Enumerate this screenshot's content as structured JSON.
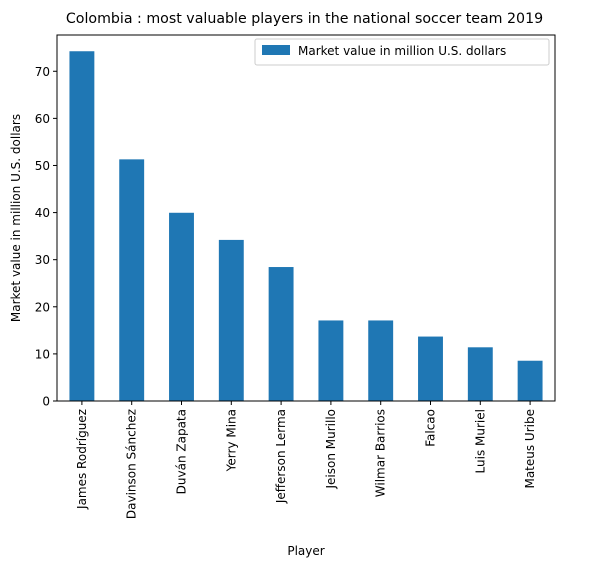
{
  "chart_data": {
    "type": "bar",
    "title": "Colombia : most valuable players in the national soccer team 2019",
    "xlabel": "Player",
    "ylabel": "Market value in million U.S. dollars",
    "ylim": [
      0,
      77.7
    ],
    "yticks": [
      0,
      10,
      20,
      30,
      40,
      50,
      60,
      70
    ],
    "grid": false,
    "legend_position": "top-right",
    "categories": [
      "James Rodríguez",
      "Davinson Sánchez",
      "Duván Zapata",
      "Yerry Mina",
      "Jefferson Lerma",
      "Jeison Murillo",
      "Wilmar Barrios",
      "Falcao",
      "Luis Muriel",
      "Mateus Uribe"
    ],
    "series": [
      {
        "name": "Market value in million U.S. dollars",
        "color": "#1f77b4",
        "values": [
          74.25,
          51.3,
          39.96,
          34.2,
          28.44,
          17.1,
          17.1,
          13.68,
          11.4,
          8.55
        ]
      }
    ]
  }
}
